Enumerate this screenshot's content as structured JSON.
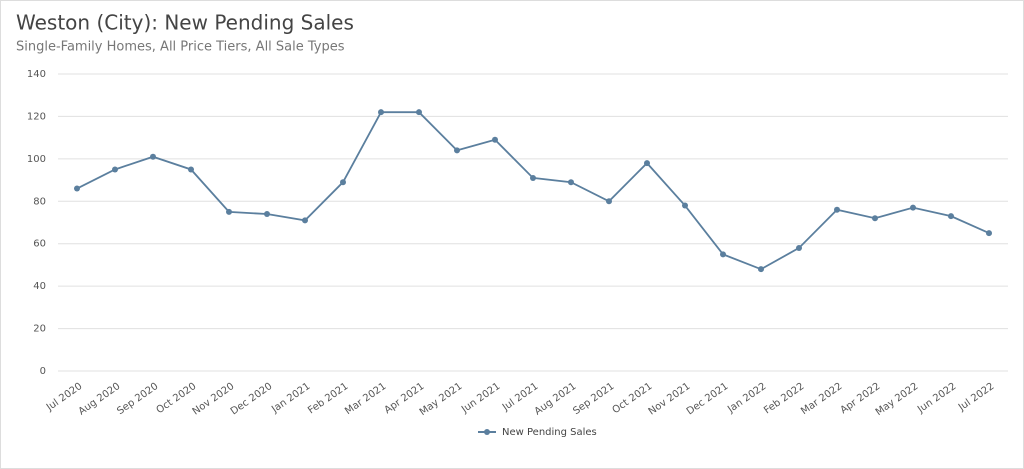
{
  "chart_data": {
    "type": "line",
    "title": "Weston (City): New Pending Sales",
    "subtitle": "Single-Family Homes, All Price Tiers, All Sale Types",
    "categories": [
      "Jul 2020",
      "Aug 2020",
      "Sep 2020",
      "Oct 2020",
      "Nov 2020",
      "Dec 2020",
      "Jan 2021",
      "Feb 2021",
      "Mar 2021",
      "Apr 2021",
      "May 2021",
      "Jun 2021",
      "Jul 2021",
      "Aug 2021",
      "Sep 2021",
      "Oct 2021",
      "Nov 2021",
      "Dec 2021",
      "Jan 2022",
      "Feb 2022",
      "Mar 2022",
      "Apr 2022",
      "May 2022",
      "Jun 2022",
      "Jul 2022"
    ],
    "series": [
      {
        "name": "New Pending Sales",
        "color": "#5b7f9e",
        "values": [
          86,
          95,
          101,
          95,
          75,
          74,
          71,
          89,
          122,
          122,
          104,
          109,
          91,
          89,
          80,
          98,
          78,
          55,
          48,
          58,
          76,
          72,
          77,
          73,
          65
        ]
      }
    ],
    "ylim": [
      0,
      140
    ],
    "yticks": [
      0,
      20,
      40,
      60,
      80,
      100,
      120,
      140
    ],
    "grid": true,
    "legend": "bottom"
  }
}
